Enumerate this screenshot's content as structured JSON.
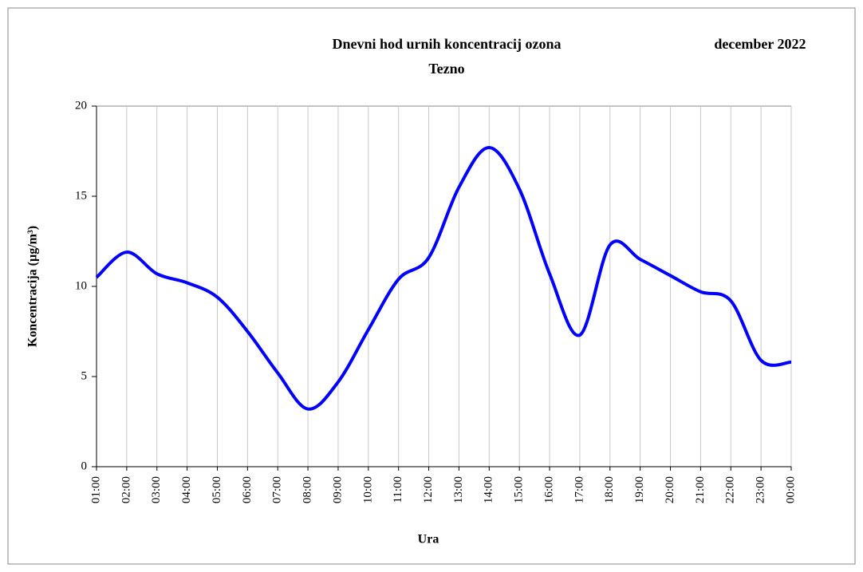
{
  "chart_data": {
    "type": "line",
    "title": "Dnevni hod urnih  koncentracij ozona",
    "subtitle": "Tezno",
    "period": "december 2022",
    "x_label": "Ura",
    "y_label": "Koncentracija  (µg/m³)",
    "categories": [
      "01:00",
      "02:00",
      "03:00",
      "04:00",
      "05:00",
      "06:00",
      "07:00",
      "08:00",
      "09:00",
      "10:00",
      "11:00",
      "12:00",
      "13:00",
      "14:00",
      "15:00",
      "16:00",
      "17:00",
      "18:00",
      "19:00",
      "20:00",
      "21:00",
      "22:00",
      "23:00",
      "00:00"
    ],
    "series": [
      {
        "color": "#0000ff",
        "values": [
          10.5,
          11.9,
          10.7,
          10.2,
          9.4,
          7.5,
          5.2,
          3.2,
          4.7,
          7.6,
          10.4,
          11.6,
          15.5,
          17.7,
          15.4,
          10.7,
          7.3,
          12.3,
          11.5,
          10.6,
          9.7,
          9.2,
          5.9,
          5.8
        ]
      }
    ],
    "ylim": [
      0,
      20
    ],
    "yticks": [
      0,
      5,
      10,
      15,
      20
    ],
    "grid": true,
    "smooth": true
  }
}
